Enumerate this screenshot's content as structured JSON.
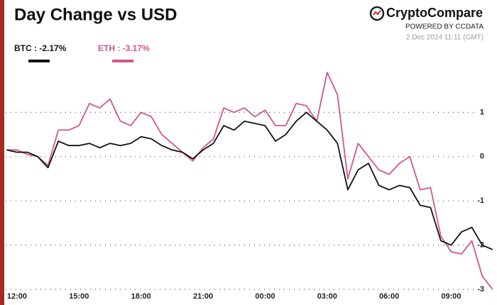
{
  "chart_data": {
    "type": "line",
    "title": "Day Change vs USD",
    "brand": "CryptoCompare",
    "brand_subtitle": "POWERED BY CCDATA",
    "timestamp": "2 Dec 2024 11:11 (GMT)",
    "x": [
      "11:30",
      "12:00",
      "12:30",
      "13:00",
      "13:30",
      "14:00",
      "14:30",
      "15:00",
      "15:30",
      "16:00",
      "16:30",
      "17:00",
      "17:30",
      "18:00",
      "18:30",
      "19:00",
      "19:30",
      "20:00",
      "20:30",
      "21:00",
      "21:30",
      "22:00",
      "22:30",
      "23:00",
      "23:30",
      "00:00",
      "00:30",
      "01:00",
      "01:30",
      "02:00",
      "02:30",
      "03:00",
      "03:30",
      "04:00",
      "04:30",
      "05:00",
      "05:30",
      "06:00",
      "06:30",
      "07:00",
      "07:30",
      "08:00",
      "08:30",
      "09:00",
      "09:30",
      "10:00",
      "10:30",
      "11:00"
    ],
    "xticks": [
      "12:00",
      "15:00",
      "18:00",
      "21:00",
      "00:00",
      "03:00",
      "06:00",
      "09:00"
    ],
    "ylim": [
      -3,
      2
    ],
    "yticks": [
      1,
      0,
      -1,
      -2,
      -3
    ],
    "grid": true,
    "series": [
      {
        "name": "BTC : -2.17%",
        "color": "#111111",
        "values": [
          0.15,
          0.1,
          0.1,
          0.0,
          -0.25,
          0.35,
          0.25,
          0.25,
          0.3,
          0.2,
          0.3,
          0.25,
          0.3,
          0.45,
          0.4,
          0.25,
          0.15,
          0.1,
          -0.05,
          0.15,
          0.3,
          0.7,
          0.6,
          0.8,
          0.75,
          0.7,
          0.35,
          0.5,
          0.8,
          1.0,
          0.8,
          0.6,
          0.3,
          -0.75,
          -0.3,
          -0.15,
          -0.65,
          -0.75,
          -0.65,
          -0.7,
          -1.1,
          -1.15,
          -1.9,
          -2.0,
          -1.7,
          -1.6,
          -2.0,
          -2.1
        ]
      },
      {
        "name": "ETH : -3.17%",
        "color": "#d0568e",
        "values": [
          0.15,
          0.15,
          0.05,
          0.0,
          -0.2,
          0.6,
          0.6,
          0.7,
          1.2,
          1.1,
          1.3,
          0.8,
          0.7,
          1.0,
          0.9,
          0.5,
          0.3,
          0.1,
          -0.1,
          0.2,
          0.4,
          1.1,
          1.0,
          1.1,
          0.9,
          1.05,
          0.7,
          0.7,
          1.2,
          1.15,
          0.8,
          1.9,
          1.4,
          -0.5,
          0.3,
          0.0,
          -0.3,
          -0.4,
          -0.15,
          0.0,
          -0.75,
          -0.7,
          -1.8,
          -2.15,
          -2.2,
          -1.9,
          -2.7,
          -3.0
        ]
      }
    ]
  }
}
